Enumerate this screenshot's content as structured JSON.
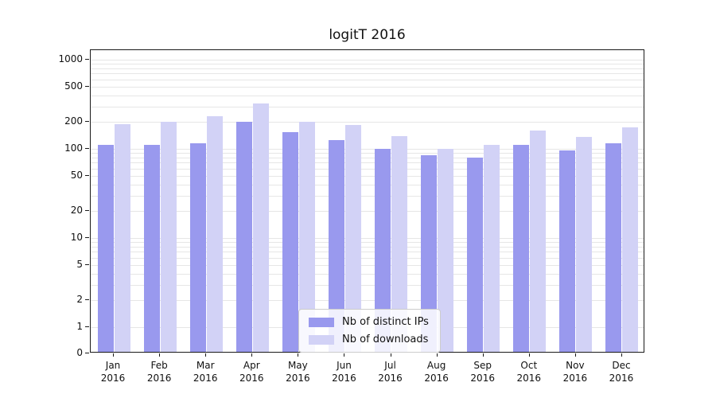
{
  "title": "logitT 2016",
  "legend": {
    "items": [
      {
        "label": "Nb of distinct IPs"
      },
      {
        "label": "Nb of downloads"
      }
    ]
  },
  "chart_data": {
    "type": "bar",
    "title": "logitT 2016",
    "categories": [
      "Jan",
      "Feb",
      "Mar",
      "Apr",
      "May",
      "Jun",
      "Jul",
      "Aug",
      "Sep",
      "Oct",
      "Nov",
      "Dec"
    ],
    "year": "2016",
    "series": [
      {
        "name": "Nb of distinct IPs",
        "color": "#9999ee",
        "values": [
          110,
          110,
          115,
          200,
          155,
          125,
          100,
          85,
          80,
          110,
          95,
          115
        ]
      },
      {
        "name": "Nb of downloads",
        "color": "#d2d2f6",
        "values": [
          190,
          200,
          230,
          320,
          200,
          185,
          140,
          100,
          110,
          160,
          135,
          175
        ]
      }
    ],
    "yscale": "symlog",
    "yticks": [
      0,
      1,
      2,
      5,
      10,
      20,
      50,
      100,
      200,
      500,
      1000
    ],
    "ylim": [
      0,
      1000
    ],
    "xlabel": "",
    "ylabel": "",
    "grid": "horizontal-minor-log",
    "legend_position": "lower-center"
  }
}
